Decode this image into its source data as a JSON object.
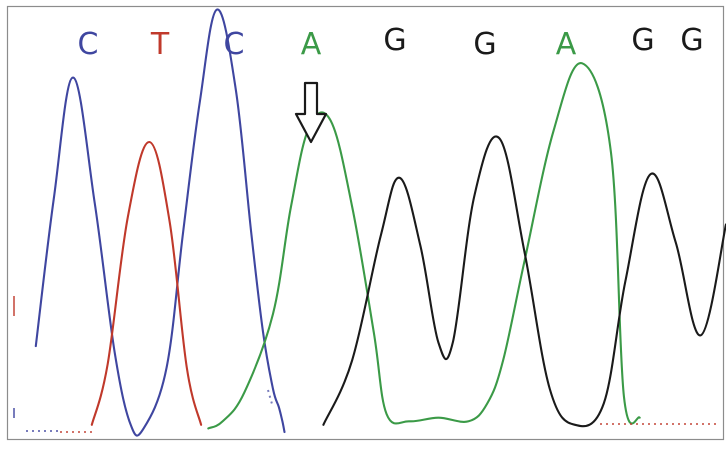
{
  "chart_data": {
    "type": "line",
    "title": "",
    "xlabel": "",
    "ylabel": "",
    "grid": false,
    "legend": "none",
    "xlim": [
      0,
      1000
    ],
    "ylim": [
      0,
      100
    ],
    "sequence": [
      "C",
      "T",
      "C",
      "A",
      "G",
      "G",
      "A",
      "G",
      "G"
    ],
    "base_colors": {
      "A": "#3b9a47",
      "C": "#3f46a0",
      "G": "#1a1a1a",
      "T": "#c0392b"
    },
    "arrow_at_base_index": 3,
    "series": [
      {
        "base": "C",
        "x": [
          40,
          65,
          92,
          122,
          150,
          172,
          190,
          222,
          245,
          268,
          292,
          318,
          340,
          356,
          370,
          378,
          383,
          386
        ],
        "y": [
          24,
          65,
          99,
          64,
          22,
          2,
          1,
          18,
          56,
          92,
          118,
          96,
          55,
          28,
          12,
          7,
          3,
          0
        ]
      },
      {
        "base": "T",
        "x": [
          118,
          140,
          168,
          198,
          226,
          250,
          270
        ],
        "y": [
          2,
          19,
          60,
          81,
          59,
          18,
          2
        ]
      },
      {
        "base": "A",
        "x": [
          280,
          300,
          330,
          370,
          395,
          420,
          450,
          480,
          510,
          528,
          560,
          600,
          642,
          668,
          690,
          720,
          760,
          800,
          840,
          858,
          880
        ],
        "y": [
          1,
          3,
          11,
          33,
          63,
          85,
          87,
          63,
          28,
          5,
          3,
          4,
          3,
          8,
          20,
          48,
          84,
          103,
          78,
          10,
          4
        ]
      },
      {
        "base": "G",
        "x": [
          440,
          480,
          520,
          546,
          575,
          600,
          620,
          650,
          685,
          720,
          755,
          790,
          830,
          860,
          895,
          930,
          965,
          1000
        ],
        "y": [
          2,
          20,
          55,
          71,
          52,
          25,
          25,
          66,
          82,
          50,
          12,
          2,
          8,
          42,
          72,
          53,
          27,
          58
        ]
      }
    ]
  }
}
